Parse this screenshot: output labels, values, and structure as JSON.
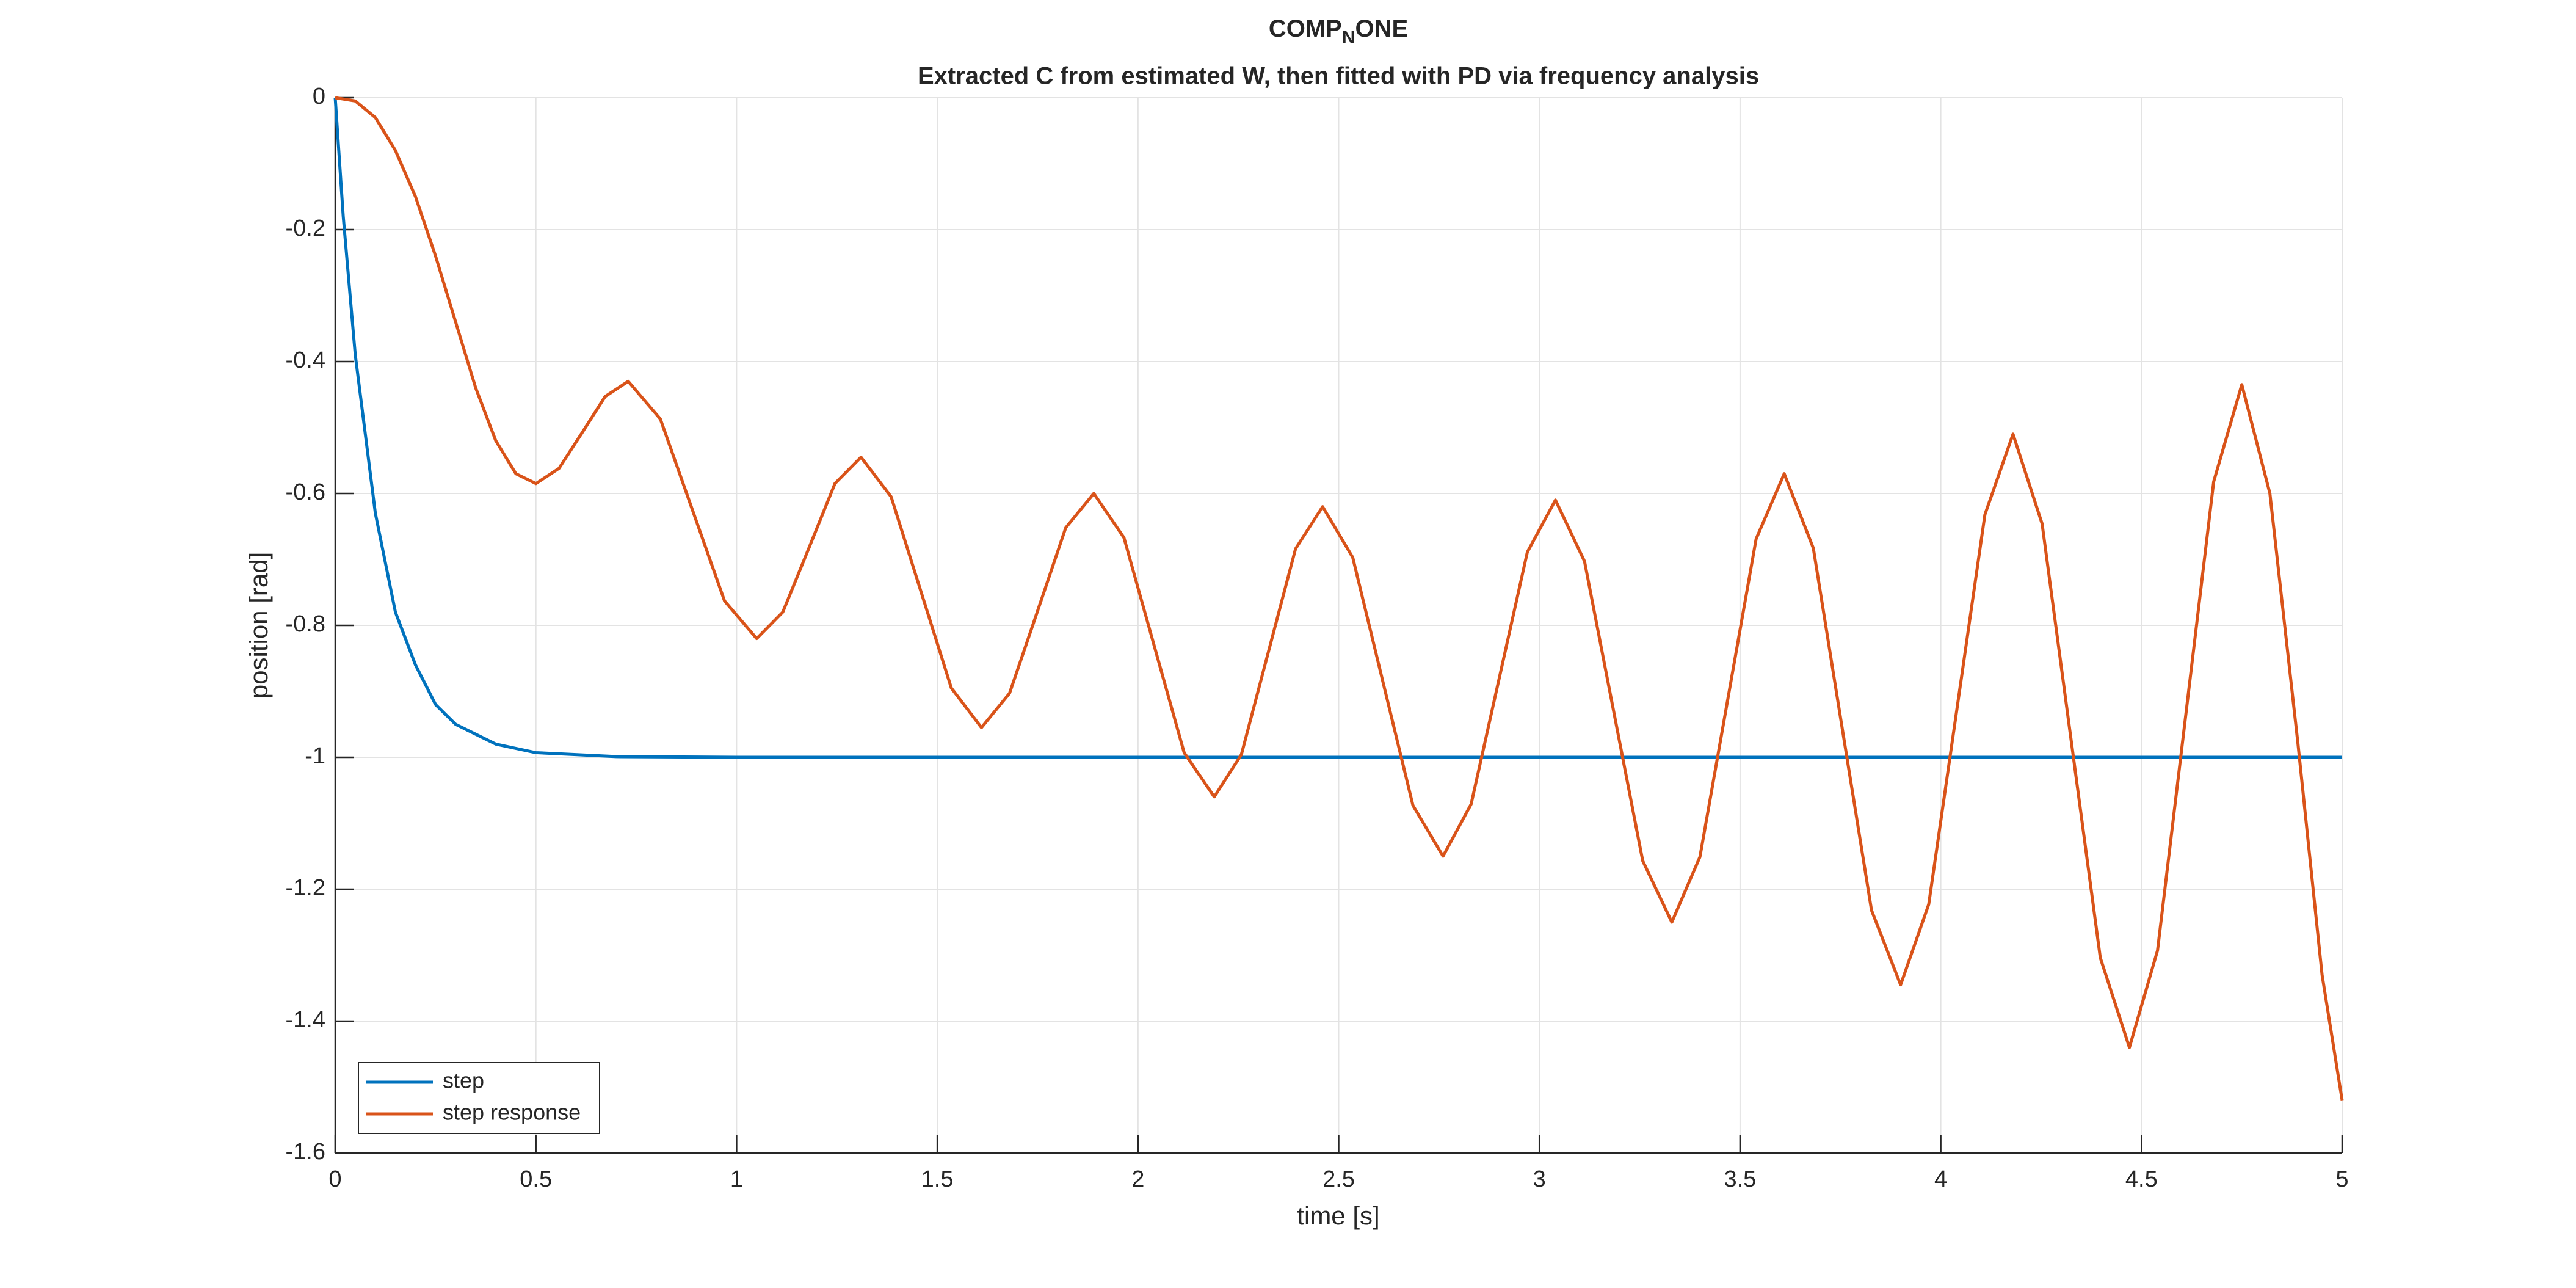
{
  "chart_data": {
    "type": "line",
    "title": [
      "COMP",
      "N",
      "ONE"
    ],
    "subtitle": "Extracted C from estimated W, then fitted with PD via frequency analysis",
    "xlabel": "time [s]",
    "ylabel": "position [rad]",
    "xlim": [
      0,
      5
    ],
    "ylim": [
      -1.6,
      0
    ],
    "xticks": [
      0,
      0.5,
      1,
      1.5,
      2,
      2.5,
      3,
      3.5,
      4,
      4.5,
      5
    ],
    "yticks": [
      -1.6,
      -1.4,
      -1.2,
      -1,
      -0.8,
      -0.6,
      -0.4,
      -0.2,
      0
    ],
    "grid": true,
    "legend": "lower left",
    "series": [
      {
        "name": "step",
        "color": "#0072bd",
        "x": [
          0,
          0.02,
          0.05,
          0.1,
          0.15,
          0.2,
          0.25,
          0.3,
          0.4,
          0.5,
          0.7,
          1,
          5
        ],
        "values": [
          0,
          -0.18,
          -0.39,
          -0.63,
          -0.78,
          -0.86,
          -0.92,
          -0.95,
          -0.98,
          -0.993,
          -0.999,
          -1,
          -1
        ]
      },
      {
        "name": "step response",
        "color": "#d95319",
        "x": [
          0,
          0.05,
          0.1,
          0.15,
          0.2,
          0.25,
          0.3,
          0.35,
          0.4,
          0.45,
          0.5,
          0.5575,
          0.615,
          0.6725,
          0.73,
          0.81,
          0.89,
          0.97,
          1.05,
          1.115,
          1.18,
          1.245,
          1.31,
          1.385,
          1.46,
          1.535,
          1.61,
          1.68,
          1.75,
          1.82,
          1.89,
          1.965,
          2.04,
          2.115,
          2.19,
          2.2575,
          2.325,
          2.3925,
          2.46,
          2.535,
          2.61,
          2.685,
          2.76,
          2.83,
          2.9,
          2.97,
          3.04,
          3.1125,
          3.185,
          3.2575,
          3.33,
          3.4,
          3.47,
          3.54,
          3.61,
          3.6825,
          3.755,
          3.8275,
          3.9,
          3.97,
          4.04,
          4.11,
          4.18,
          4.2525,
          4.325,
          4.3975,
          4.47,
          4.54,
          4.61,
          4.68,
          4.75,
          4.82,
          4.89,
          4.95,
          5
        ],
        "values": [
          0,
          -0.005,
          -0.03,
          -0.08,
          -0.15,
          -0.24,
          -0.34,
          -0.44,
          -0.52,
          -0.57,
          -0.585,
          -0.562,
          -0.508,
          -0.453,
          -0.43,
          -0.487,
          -0.625,
          -0.763,
          -0.82,
          -0.78,
          -0.683,
          -0.585,
          -0.545,
          -0.605,
          -0.75,
          -0.895,
          -0.955,
          -0.903,
          -0.778,
          -0.652,
          -0.6,
          -0.667,
          -0.83,
          -0.993,
          -1.06,
          -0.996,
          -0.84,
          -0.684,
          -0.62,
          -0.697,
          -0.885,
          -1.073,
          -1.15,
          -1.071,
          -0.88,
          -0.689,
          -0.61,
          -0.703,
          -0.93,
          -1.157,
          -1.25,
          -1.151,
          -0.91,
          -0.669,
          -0.57,
          -0.683,
          -0.958,
          -1.232,
          -1.345,
          -1.223,
          -0.928,
          -0.632,
          -0.51,
          -0.646,
          -0.975,
          -1.304,
          -1.44,
          -1.293,
          -0.938,
          -0.582,
          -0.435,
          -0.6,
          -0.98,
          -1.33,
          -1.52
        ]
      }
    ]
  }
}
